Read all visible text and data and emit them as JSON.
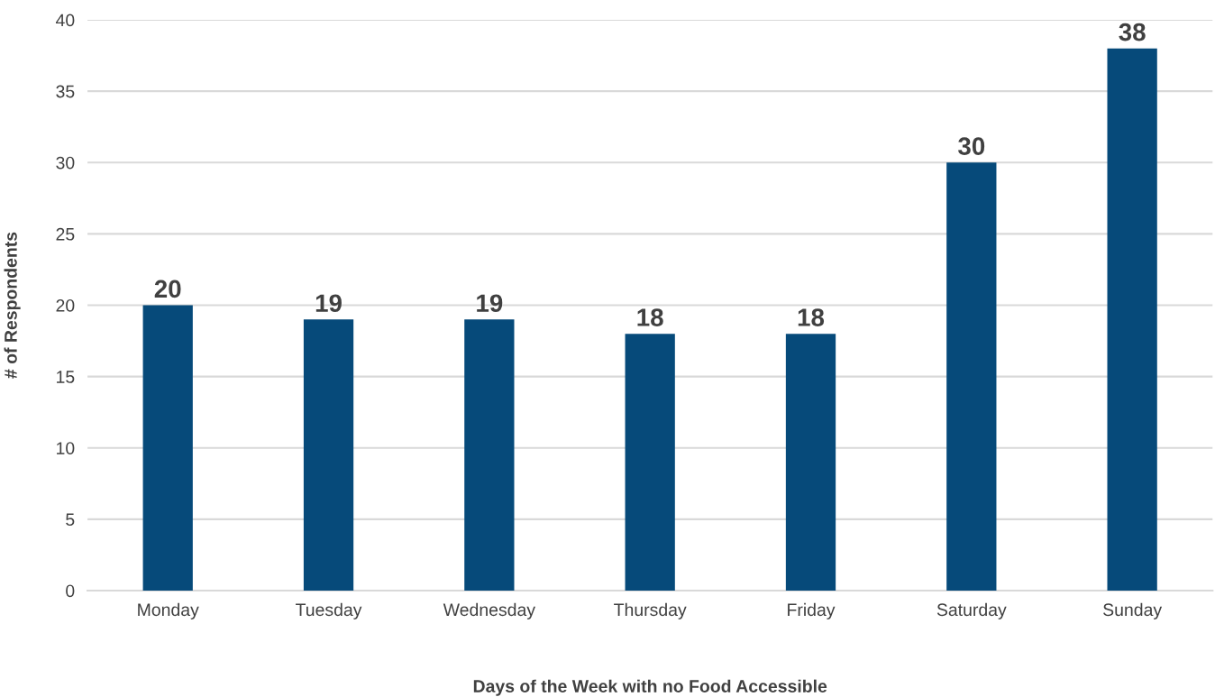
{
  "chart_data": {
    "type": "bar",
    "xlabel": "Days of the Week with no Food Accessible",
    "ylabel": "# of Respondents",
    "categories": [
      "Monday",
      "Tuesday",
      "Wednesday",
      "Thursday",
      "Friday",
      "Saturday",
      "Sunday"
    ],
    "values": [
      20,
      19,
      19,
      18,
      18,
      30,
      38
    ],
    "color": "#064a7a",
    "ylim": [
      0,
      40
    ],
    "yticks": [
      0,
      5,
      10,
      15,
      20,
      25,
      30,
      35,
      40
    ],
    "grid": "y",
    "data_labels": true
  }
}
